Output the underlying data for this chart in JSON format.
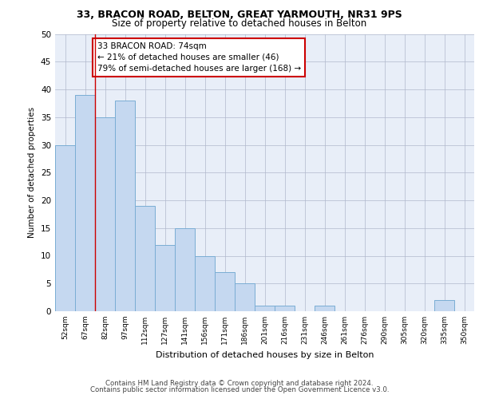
{
  "title1": "33, BRACON ROAD, BELTON, GREAT YARMOUTH, NR31 9PS",
  "title2": "Size of property relative to detached houses in Belton",
  "xlabel": "Distribution of detached houses by size in Belton",
  "ylabel": "Number of detached properties",
  "categories": [
    "52sqm",
    "67sqm",
    "82sqm",
    "97sqm",
    "112sqm",
    "127sqm",
    "141sqm",
    "156sqm",
    "171sqm",
    "186sqm",
    "201sqm",
    "216sqm",
    "231sqm",
    "246sqm",
    "261sqm",
    "276sqm",
    "290sqm",
    "305sqm",
    "320sqm",
    "335sqm",
    "350sqm"
  ],
  "values": [
    30,
    39,
    35,
    38,
    19,
    12,
    15,
    10,
    7,
    5,
    1,
    1,
    0,
    1,
    0,
    0,
    0,
    0,
    0,
    2,
    0
  ],
  "bar_color": "#c5d8f0",
  "bar_edge_color": "#7aadd4",
  "vline_x": 1.5,
  "vline_color": "#cc0000",
  "annotation_text": "33 BRACON ROAD: 74sqm\n← 21% of detached houses are smaller (46)\n79% of semi-detached houses are larger (168) →",
  "annotation_box_color": "#ffffff",
  "annotation_box_edge": "#cc0000",
  "ylim": [
    0,
    50
  ],
  "yticks": [
    0,
    5,
    10,
    15,
    20,
    25,
    30,
    35,
    40,
    45,
    50
  ],
  "footer1": "Contains HM Land Registry data © Crown copyright and database right 2024.",
  "footer2": "Contains public sector information licensed under the Open Government Licence v3.0.",
  "plot_bg": "#e8eef8"
}
